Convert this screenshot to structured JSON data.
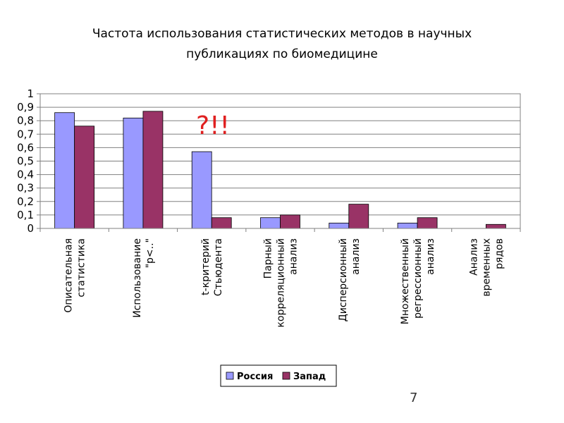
{
  "slide": {
    "page_number": "7"
  },
  "chart_data": {
    "type": "bar",
    "title_lines": [
      "Частота использования статистических методов в научных",
      "публикациях по биомедицине"
    ],
    "categories": [
      [
        "Описательная",
        "статистика"
      ],
      [
        "Использование",
        "\"p<..\""
      ],
      [
        "t-критерий",
        "Стьюдента"
      ],
      [
        "Парный",
        "корреляционный",
        "анализ"
      ],
      [
        "Дисперсионный",
        "анализ"
      ],
      [
        "Множественный",
        "регрессионный",
        "анализ"
      ],
      [
        "Анализ",
        "временных",
        "рядов"
      ]
    ],
    "series": [
      {
        "name": "Россия",
        "color": "#9999ff",
        "values": [
          0.86,
          0.82,
          0.57,
          0.08,
          0.04,
          0.04,
          0
        ]
      },
      {
        "name": "Запад",
        "color": "#993366",
        "values": [
          0.76,
          0.87,
          0.08,
          0.1,
          0.18,
          0.08,
          0.03
        ]
      }
    ],
    "y_ticks": [
      "0",
      "0,1",
      "0,2",
      "0,3",
      "0,4",
      "0,5",
      "0,6",
      "0,7",
      "0,8",
      "0,9",
      "1"
    ],
    "ylim": [
      0,
      1
    ],
    "grid": true,
    "legend_position": "bottom",
    "annotation": "?!!"
  }
}
